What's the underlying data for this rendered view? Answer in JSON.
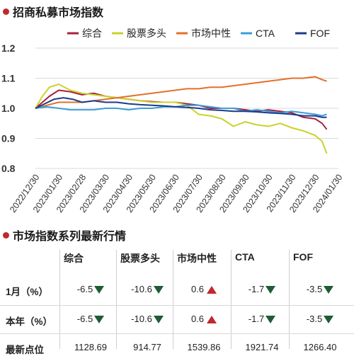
{
  "chart_title": "招商私募市场指数",
  "table_title": "市场指数系列最新行情",
  "chart_data": {
    "type": "line",
    "title": "招商私募市场指数",
    "ylim": [
      0.8,
      1.2
    ],
    "yticks": [
      "1.2",
      "1.1",
      "1.0",
      "0.9",
      "0.8"
    ],
    "yvalues": [
      1.2,
      1.1,
      1.0,
      0.9,
      0.8
    ],
    "xticks": [
      "2022/12/30",
      "2023/01/30",
      "2023/02/28",
      "2023/03/30",
      "2023/04/30",
      "2023/05/30",
      "2023/06/30",
      "2023/07/30",
      "2023/08/30",
      "2023/09/30",
      "2023/10/30",
      "2023/11/30",
      "2023/12/30",
      "2024/01/30"
    ],
    "grid": true,
    "legend_position": "top",
    "series": [
      {
        "name": "综合",
        "color": "#a8203f",
        "points": [
          [
            0,
            1.0
          ],
          [
            0.3,
            1.02
          ],
          [
            0.6,
            1.04
          ],
          [
            1,
            1.06
          ],
          [
            1.5,
            1.055
          ],
          [
            2,
            1.045
          ],
          [
            2.5,
            1.05
          ],
          [
            3,
            1.04
          ],
          [
            3.5,
            1.035
          ],
          [
            4,
            1.03
          ],
          [
            4.5,
            1.025
          ],
          [
            5,
            1.022
          ],
          [
            5.5,
            1.02
          ],
          [
            6,
            1.02
          ],
          [
            6.5,
            1.015
          ],
          [
            7,
            1.01
          ],
          [
            7.5,
            1.0
          ],
          [
            8,
            1.0
          ],
          [
            8.5,
            1.0
          ],
          [
            9,
            0.995
          ],
          [
            9.5,
            0.99
          ],
          [
            10,
            0.995
          ],
          [
            10.5,
            0.99
          ],
          [
            11,
            0.985
          ],
          [
            11.5,
            0.97
          ],
          [
            12,
            0.965
          ],
          [
            12.3,
            0.95
          ],
          [
            12.5,
            0.93
          ]
        ]
      },
      {
        "name": "股票多头",
        "color": "#c9d32a",
        "points": [
          [
            0,
            1.0
          ],
          [
            0.3,
            1.04
          ],
          [
            0.6,
            1.07
          ],
          [
            1,
            1.08
          ],
          [
            1.5,
            1.06
          ],
          [
            2,
            1.05
          ],
          [
            2.5,
            1.045
          ],
          [
            3,
            1.04
          ],
          [
            3.5,
            1.035
          ],
          [
            4,
            1.03
          ],
          [
            4.5,
            1.025
          ],
          [
            5,
            1.02
          ],
          [
            5.5,
            1.02
          ],
          [
            6,
            1.02
          ],
          [
            6.5,
            1.01
          ],
          [
            7,
            0.98
          ],
          [
            7.5,
            0.975
          ],
          [
            8,
            0.965
          ],
          [
            8.5,
            0.94
          ],
          [
            9,
            0.955
          ],
          [
            9.5,
            0.945
          ],
          [
            10,
            0.94
          ],
          [
            10.5,
            0.95
          ],
          [
            11,
            0.935
          ],
          [
            11.5,
            0.925
          ],
          [
            12,
            0.91
          ],
          [
            12.3,
            0.89
          ],
          [
            12.5,
            0.85
          ]
        ]
      },
      {
        "name": "市场中性",
        "color": "#e3702b",
        "points": [
          [
            0,
            1.0
          ],
          [
            0.5,
            1.01
          ],
          [
            1,
            1.02
          ],
          [
            1.5,
            1.02
          ],
          [
            2,
            1.02
          ],
          [
            2.5,
            1.025
          ],
          [
            3,
            1.03
          ],
          [
            3.5,
            1.035
          ],
          [
            4,
            1.04
          ],
          [
            4.5,
            1.045
          ],
          [
            5,
            1.05
          ],
          [
            5.5,
            1.055
          ],
          [
            6,
            1.06
          ],
          [
            6.5,
            1.065
          ],
          [
            7,
            1.065
          ],
          [
            7.5,
            1.07
          ],
          [
            8,
            1.07
          ],
          [
            8.5,
            1.075
          ],
          [
            9,
            1.08
          ],
          [
            9.5,
            1.085
          ],
          [
            10,
            1.09
          ],
          [
            10.5,
            1.095
          ],
          [
            11,
            1.1
          ],
          [
            11.5,
            1.1
          ],
          [
            12,
            1.105
          ],
          [
            12.3,
            1.095
          ],
          [
            12.5,
            1.09
          ]
        ]
      },
      {
        "name": "CTA",
        "color": "#3b9ed8",
        "points": [
          [
            0,
            1.0
          ],
          [
            0.5,
            1.005
          ],
          [
            1,
            1.0
          ],
          [
            1.5,
            0.995
          ],
          [
            2,
            0.995
          ],
          [
            2.5,
            0.995
          ],
          [
            3,
            1.0
          ],
          [
            3.5,
            1.0
          ],
          [
            4,
            0.995
          ],
          [
            4.5,
            1.0
          ],
          [
            5,
            1.0
          ],
          [
            5.5,
            1.005
          ],
          [
            6,
            1.005
          ],
          [
            6.5,
            1.01
          ],
          [
            7,
            1.01
          ],
          [
            7.5,
            1.005
          ],
          [
            8,
            1.0
          ],
          [
            8.5,
            1.0
          ],
          [
            9,
            0.99
          ],
          [
            9.5,
            0.995
          ],
          [
            10,
            0.99
          ],
          [
            10.5,
            0.985
          ],
          [
            11,
            0.99
          ],
          [
            11.5,
            0.985
          ],
          [
            12,
            0.98
          ],
          [
            12.3,
            0.975
          ],
          [
            12.5,
            0.98
          ]
        ]
      },
      {
        "name": "FOF",
        "color": "#1e3a8a",
        "points": [
          [
            0,
            1.0
          ],
          [
            0.4,
            1.015
          ],
          [
            0.8,
            1.03
          ],
          [
            1.2,
            1.035
          ],
          [
            1.6,
            1.03
          ],
          [
            2,
            1.02
          ],
          [
            2.5,
            1.025
          ],
          [
            3,
            1.02
          ],
          [
            3.5,
            1.02
          ],
          [
            4,
            1.015
          ],
          [
            4.5,
            1.012
          ],
          [
            5,
            1.01
          ],
          [
            5.5,
            1.008
          ],
          [
            6,
            1.005
          ],
          [
            6.5,
            1.003
          ],
          [
            7,
            1.0
          ],
          [
            7.5,
            0.995
          ],
          [
            8,
            0.993
          ],
          [
            8.5,
            0.99
          ],
          [
            9,
            0.99
          ],
          [
            9.5,
            0.988
          ],
          [
            10,
            0.985
          ],
          [
            10.5,
            0.983
          ],
          [
            11,
            0.98
          ],
          [
            11.5,
            0.975
          ],
          [
            12,
            0.975
          ],
          [
            12.3,
            0.97
          ],
          [
            12.5,
            0.97
          ]
        ]
      }
    ]
  },
  "table": {
    "columns": [
      "综合",
      "股票多头",
      "市场中性",
      "CTA",
      "FOF"
    ],
    "rows": [
      {
        "label": "1月（%）",
        "values": [
          "-6.5",
          "-10.6",
          "0.6",
          "-1.7",
          "-3.5"
        ],
        "dirs": [
          "down",
          "down",
          "up",
          "down",
          "down"
        ]
      },
      {
        "label": "本年（%）",
        "values": [
          "-6.5",
          "-10.6",
          "0.6",
          "-1.7",
          "-3.5"
        ],
        "dirs": [
          "down",
          "down",
          "up",
          "down",
          "down"
        ]
      },
      {
        "label": "最新点位",
        "values": [
          "1128.69",
          "914.77",
          "1539.86",
          "1921.74",
          "1266.40"
        ],
        "dirs": [
          "",
          "",
          "",
          "",
          ""
        ]
      }
    ]
  }
}
